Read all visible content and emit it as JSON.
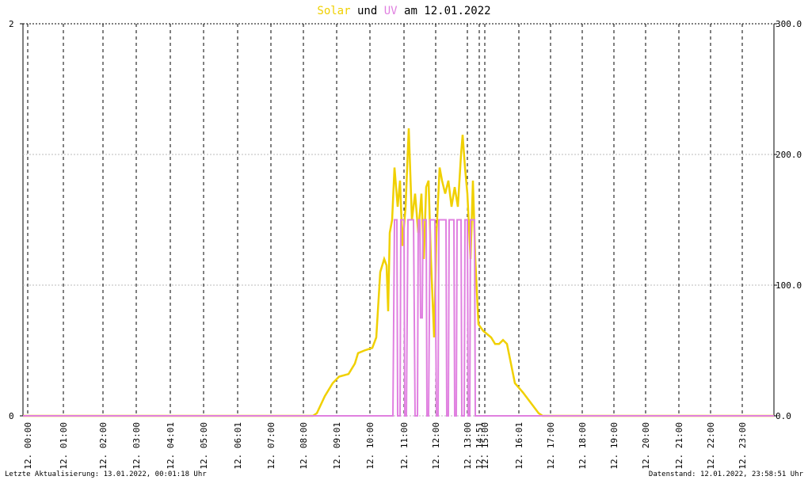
{
  "chart_data": {
    "type": "line",
    "title_parts": [
      "und",
      "am 12.01.2022"
    ],
    "xlim": [
      0,
      948
    ],
    "xticks": [
      {
        "value": 6,
        "label": "12. 00:00"
      },
      {
        "value": 51,
        "label": "12. 01:00"
      },
      {
        "value": 101,
        "label": "12. 02:00"
      },
      {
        "value": 143,
        "label": "12. 03:00"
      },
      {
        "value": 186,
        "label": "12. 04:01"
      },
      {
        "value": 228,
        "label": "12. 05:00"
      },
      {
        "value": 271,
        "label": "12. 06:01"
      },
      {
        "value": 313,
        "label": "12. 07:00"
      },
      {
        "value": 354,
        "label": "12. 08:00"
      },
      {
        "value": 396,
        "label": "12. 09:01"
      },
      {
        "value": 438,
        "label": "12. 10:00"
      },
      {
        "value": 481,
        "label": "12. 11:00"
      },
      {
        "value": 521,
        "label": "12. 12:00"
      },
      {
        "value": 561,
        "label": "12. 13:00"
      },
      {
        "value": 576,
        "label": "12. 14:51"
      },
      {
        "value": 583,
        "label": "12. 15:00"
      },
      {
        "value": 626,
        "label": "12. 16:01"
      },
      {
        "value": 666,
        "label": "12. 17:00"
      },
      {
        "value": 706,
        "label": "12. 18:00"
      },
      {
        "value": 746,
        "label": "12. 19:00"
      },
      {
        "value": 786,
        "label": "12. 20:00"
      },
      {
        "value": 828,
        "label": "12. 21:00"
      },
      {
        "value": 868,
        "label": "12. 22:00"
      },
      {
        "value": 908,
        "label": "12. 23:00"
      }
    ],
    "ylim": [
      0,
      2
    ],
    "yticks": [
      0,
      2
    ],
    "y2lim": [
      0,
      300
    ],
    "y2ticks": [
      {
        "value": 0,
        "label": "0.0"
      },
      {
        "value": 100,
        "label": "100.0"
      },
      {
        "value": 200,
        "label": "200.0"
      },
      {
        "value": 300,
        "label": "300.0"
      }
    ],
    "grid": true,
    "series": [
      {
        "name": "Solar",
        "color": "#f0d000",
        "axis": "y2",
        "x": [
          0,
          366,
          371,
          381,
          391,
          399,
          411,
          419,
          423,
          431,
          441,
          446,
          451,
          456,
          459,
          461,
          463,
          466,
          469,
          473,
          476,
          479,
          483,
          487,
          491,
          495,
          499,
          503,
          506,
          509,
          512,
          515,
          519,
          522,
          526,
          529,
          533,
          537,
          541,
          545,
          549,
          553,
          555,
          558,
          561,
          565,
          568,
          571,
          575,
          581,
          591,
          596,
          601,
          606,
          611,
          616,
          621,
          631,
          641,
          651,
          656,
          948
        ],
        "values": [
          0,
          0,
          2,
          15,
          25,
          30,
          32,
          40,
          48,
          50,
          52,
          60,
          110,
          120,
          115,
          80,
          140,
          150,
          190,
          160,
          180,
          130,
          160,
          220,
          150,
          170,
          140,
          170,
          120,
          175,
          180,
          120,
          60,
          140,
          190,
          180,
          170,
          180,
          160,
          175,
          160,
          200,
          215,
          190,
          170,
          120,
          180,
          120,
          70,
          65,
          60,
          55,
          55,
          58,
          55,
          40,
          25,
          18,
          10,
          2,
          0,
          0
        ]
      },
      {
        "name": "UV",
        "color": "#e080e0",
        "x": [
          0,
          467,
          468,
          469,
          472,
          473,
          476,
          477,
          481,
          482,
          484,
          485,
          486,
          493,
          494,
          495,
          498,
          499,
          501,
          502,
          504,
          505,
          509,
          510,
          512,
          513,
          514,
          520,
          521,
          522,
          524,
          525,
          534,
          535,
          537,
          538,
          544,
          545,
          547,
          548,
          553,
          554,
          557,
          558,
          561,
          562,
          564,
          565,
          570,
          571,
          948
        ],
        "values": [
          0,
          0,
          0.5,
          1,
          1,
          0,
          0,
          1,
          1,
          0,
          0,
          0.5,
          1,
          1,
          0.5,
          0,
          0,
          1,
          1,
          0.5,
          0.5,
          1,
          1,
          0,
          0,
          0.5,
          1,
          1,
          0.5,
          0,
          0,
          1,
          1,
          0,
          0,
          1,
          1,
          0,
          0,
          1,
          1,
          0,
          0,
          1,
          1,
          0,
          0,
          1,
          1,
          0,
          0
        ]
      }
    ],
    "footer_left": "Letzte Aktualisierung: 13.01.2022, 00:01:18 Uhr",
    "footer_right": "Datenstand: 12.01.2022, 23:58:51 Uhr"
  }
}
